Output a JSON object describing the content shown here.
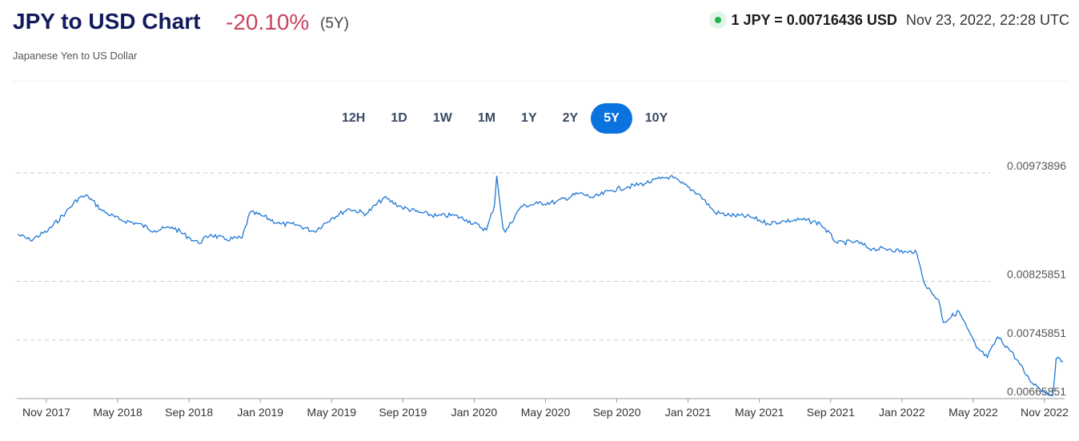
{
  "header": {
    "title": "JPY to USD Chart",
    "change": "-20.10%",
    "period": "(5Y)",
    "rate": "1 JPY = 0.00716436 USD",
    "timestamp": "Nov 23, 2022, 22:28 UTC",
    "subtitle": "Japanese Yen to US Dollar"
  },
  "tabs": [
    {
      "label": "12H",
      "active": false
    },
    {
      "label": "1D",
      "active": false
    },
    {
      "label": "1W",
      "active": false
    },
    {
      "label": "1M",
      "active": false
    },
    {
      "label": "1Y",
      "active": false
    },
    {
      "label": "2Y",
      "active": false
    },
    {
      "label": "5Y",
      "active": true
    },
    {
      "label": "10Y",
      "active": false
    }
  ],
  "colors": {
    "accent": "#0a73e0",
    "line": "#1f77d4",
    "negative": "#c8455e",
    "title": "#101a5c",
    "live": "#22b14c"
  },
  "chart_data": {
    "type": "line",
    "title": "",
    "xlabel": "",
    "ylabel": "",
    "grid": "horizontal-dashed",
    "legend": "none",
    "x_ticks": [
      "Nov 2017",
      "May 2018",
      "Sep 2018",
      "Jan 2019",
      "May 2019",
      "Sep 2019",
      "Jan 2020",
      "May 2020",
      "Sep 2020",
      "Jan 2021",
      "May 2021",
      "Sep 2021",
      "Jan 2022",
      "May 2022",
      "Nov 2022"
    ],
    "y_ticks": [
      "0.00973896",
      "0.00825851",
      "0.00745851",
      "0.00665851"
    ],
    "ylim": [
      0.00665851,
      0.00973896
    ],
    "series": [
      {
        "x": [
          "2017-11-23",
          "2017-12-15",
          "2018-01-15",
          "2018-02-15",
          "2018-03-10",
          "2018-03-26",
          "2018-04-20",
          "2018-05-20",
          "2018-06-20",
          "2018-07-20",
          "2018-08-20",
          "2018-09-20",
          "2018-10-05",
          "2018-10-26",
          "2018-11-20",
          "2018-12-20",
          "2019-01-03",
          "2019-01-25",
          "2019-02-25",
          "2019-03-25",
          "2019-04-25",
          "2019-05-25",
          "2019-06-25",
          "2019-07-25",
          "2019-08-25",
          "2019-09-25",
          "2019-10-25",
          "2019-11-25",
          "2019-12-25",
          "2020-01-16",
          "2020-02-20",
          "2020-03-05",
          "2020-03-09",
          "2020-03-20",
          "2020-03-24",
          "2020-04-20",
          "2020-05-20",
          "2020-06-20",
          "2020-07-31",
          "2020-08-25",
          "2020-09-25",
          "2020-10-25",
          "2020-11-25",
          "2020-12-20",
          "2021-01-06",
          "2021-01-25",
          "2021-02-25",
          "2021-03-25",
          "2021-04-20",
          "2021-05-25",
          "2021-06-25",
          "2021-07-25",
          "2021-08-25",
          "2021-09-25",
          "2021-10-25",
          "2021-11-25",
          "2021-12-25",
          "2022-01-25",
          "2022-02-25",
          "2022-03-10",
          "2022-03-28",
          "2022-04-20",
          "2022-04-28",
          "2022-05-25",
          "2022-06-25",
          "2022-07-14",
          "2022-08-01",
          "2022-08-25",
          "2022-09-25",
          "2022-10-20",
          "2022-11-05",
          "2022-11-11",
          "2022-11-23"
        ],
        "y": [
          0.0089,
          0.00882,
          0.00895,
          0.0092,
          0.0094,
          0.00942,
          0.00922,
          0.0091,
          0.00905,
          0.00895,
          0.009,
          0.00885,
          0.00878,
          0.0089,
          0.00883,
          0.00885,
          0.0092,
          0.00915,
          0.00904,
          0.00903,
          0.00894,
          0.00912,
          0.00925,
          0.00918,
          0.0094,
          0.00927,
          0.0092,
          0.00915,
          0.00916,
          0.0091,
          0.00896,
          0.0093,
          0.0097,
          0.00898,
          0.00893,
          0.00928,
          0.00932,
          0.00934,
          0.00946,
          0.0094,
          0.0095,
          0.00955,
          0.0096,
          0.00966,
          0.00969,
          0.0096,
          0.00945,
          0.0092,
          0.00916,
          0.00914,
          0.00905,
          0.00908,
          0.0091,
          0.00905,
          0.00878,
          0.0088,
          0.0087,
          0.0087,
          0.00865,
          0.00868,
          0.0082,
          0.008,
          0.0077,
          0.00785,
          0.00735,
          0.00722,
          0.0075,
          0.0073,
          0.00692,
          0.00676,
          0.0067,
          0.0072,
          0.00716436
        ]
      }
    ]
  }
}
